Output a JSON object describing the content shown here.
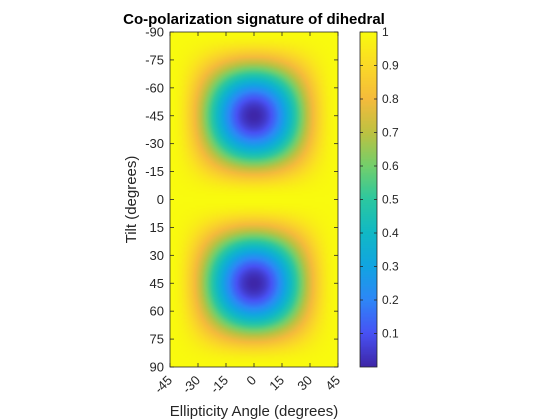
{
  "chart_data": {
    "type": "heatmap",
    "title": "Co-polarization signature of dihedral",
    "xlabel": "Ellipticity Angle (degrees)",
    "ylabel": "Tilt (degrees)",
    "x_ticks": [
      "-45",
      "-30",
      "-15",
      "0",
      "15",
      "30",
      "45"
    ],
    "x_tick_values": [
      -45,
      -30,
      -15,
      0,
      15,
      30,
      45
    ],
    "y_ticks": [
      "-90",
      "-75",
      "-60",
      "-45",
      "-30",
      "-15",
      "0",
      "15",
      "30",
      "45",
      "60",
      "75",
      "90"
    ],
    "y_tick_values": [
      -90,
      -75,
      -60,
      -45,
      -30,
      -15,
      0,
      15,
      30,
      45,
      60,
      75,
      90
    ],
    "xlim": [
      -45,
      45
    ],
    "ylim": [
      -90,
      90
    ],
    "y_direction": "reversed (-90 at top, 90 at bottom)",
    "function": "normalized co-pol power of dihedral: minima (~0) at tilt = -45 and 45 with ellipticity = 0; maximum 1 along tilt = -90, 0, 90 and at ellipticity = -45, 45",
    "minima": [
      {
        "tilt": -45,
        "ellipticity": 0,
        "value": 0
      },
      {
        "tilt": 45,
        "ellipticity": 0,
        "value": 0
      }
    ],
    "colorbar": {
      "colormap": "parula",
      "range": [
        0,
        1
      ],
      "ticks": [
        "0.1",
        "0.2",
        "0.3",
        "0.4",
        "0.5",
        "0.6",
        "0.7",
        "0.8",
        "0.9",
        "1"
      ],
      "tick_values": [
        0.1,
        0.2,
        0.3,
        0.4,
        0.5,
        0.6,
        0.7,
        0.8,
        0.9,
        1.0
      ],
      "placement": "right"
    },
    "grid": false
  }
}
